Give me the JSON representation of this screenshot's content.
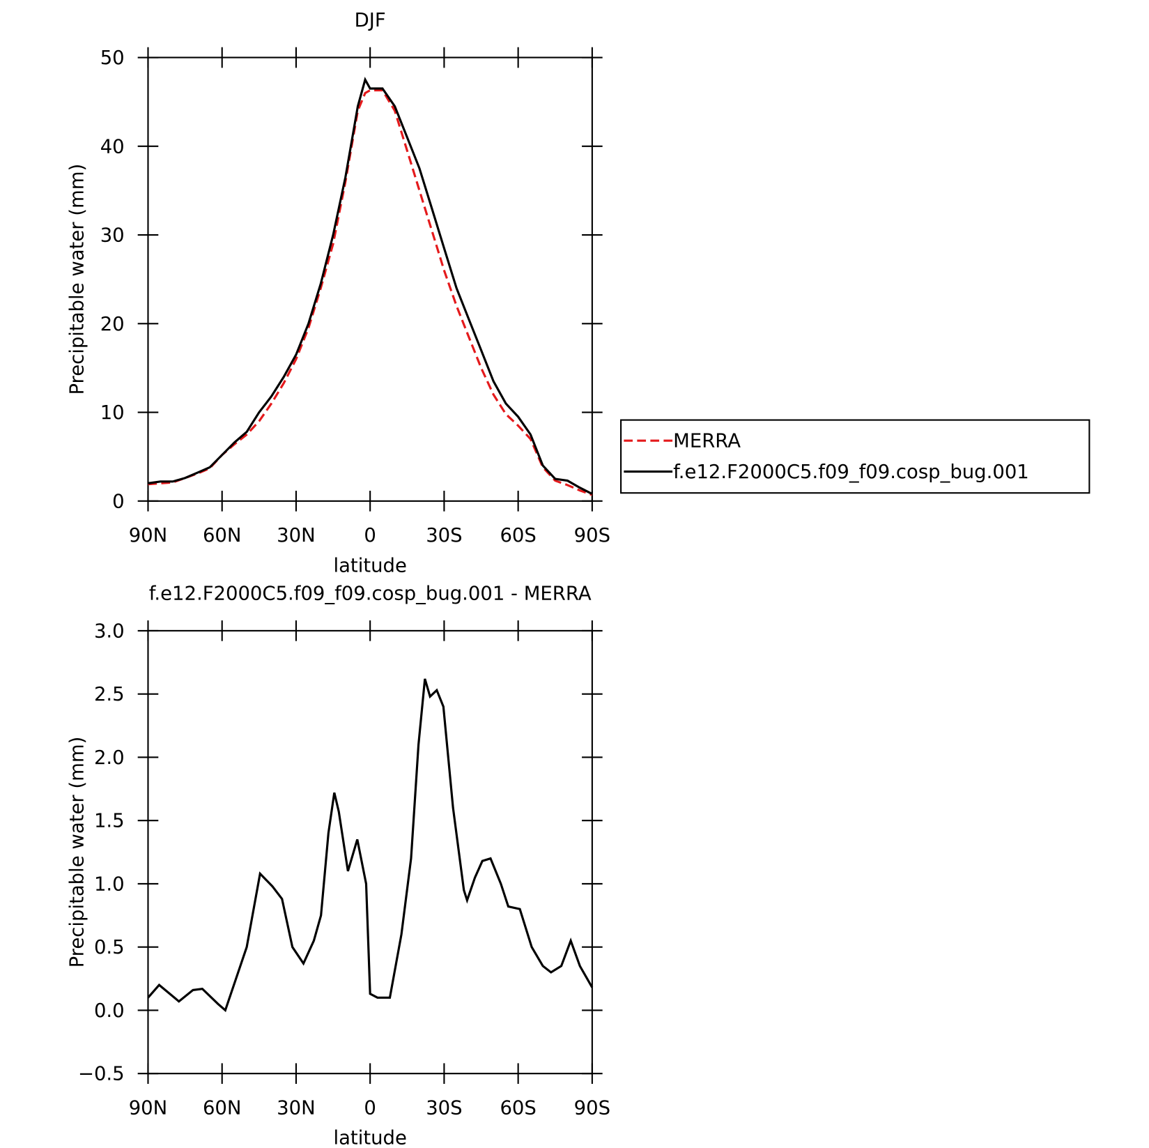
{
  "chart_data": [
    {
      "type": "line",
      "title": "DJF",
      "xlabel": "latitude",
      "ylabel": "Precipitable water (mm)",
      "x": [
        90,
        85,
        80,
        75,
        70,
        65,
        60,
        55,
        50,
        45,
        40,
        35,
        30,
        25,
        20,
        15,
        10,
        5,
        2,
        0,
        -5,
        -10,
        -15,
        -20,
        -25,
        -30,
        -35,
        -40,
        -45,
        -50,
        -55,
        -60,
        -65,
        -70,
        -75,
        -80,
        -85,
        -90
      ],
      "xlim": [
        90,
        -90
      ],
      "xticks": [
        {
          "value": 90,
          "label": "90N"
        },
        {
          "value": 60,
          "label": "60N"
        },
        {
          "value": 30,
          "label": "30N"
        },
        0,
        {
          "value": -30,
          "label": "30S"
        },
        {
          "value": -60,
          "label": "60S"
        },
        {
          "value": -90,
          "label": "90S"
        }
      ],
      "ylim": [
        0,
        50
      ],
      "yticks": [
        0,
        10,
        20,
        30,
        40,
        50
      ],
      "legend": "outside-right",
      "series": [
        {
          "name": "MERRA",
          "color": "#e41a1c",
          "dash": true,
          "values": [
            1.9,
            2.0,
            2.1,
            2.6,
            3.1,
            3.7,
            5.2,
            6.4,
            7.5,
            9.0,
            11.0,
            13.3,
            16.0,
            19.5,
            24.0,
            29.0,
            36.0,
            44.0,
            46.0,
            46.3,
            46.3,
            44.0,
            39.5,
            35.0,
            30.5,
            26.0,
            22.0,
            18.5,
            15.0,
            12.0,
            9.8,
            8.5,
            7.0,
            3.8,
            2.3,
            1.8,
            1.2,
            0.7
          ]
        },
        {
          "name": "f.e12.F2000C5.f09_f09.cosp_bug.001",
          "color": "#000000",
          "dash": false,
          "values": [
            2.0,
            2.2,
            2.2,
            2.6,
            3.2,
            3.8,
            5.2,
            6.6,
            7.8,
            10.0,
            11.8,
            14.0,
            16.5,
            20.0,
            24.5,
            30.0,
            36.5,
            44.5,
            47.5,
            46.5,
            46.5,
            44.5,
            41.0,
            37.5,
            33.0,
            28.5,
            24.0,
            20.5,
            17.0,
            13.5,
            11.0,
            9.5,
            7.5,
            4.0,
            2.5,
            2.3,
            1.5,
            0.8
          ]
        }
      ]
    },
    {
      "type": "line",
      "title": "f.e12.F2000C5.f09_f09.cosp_bug.001 - MERRA",
      "xlabel": "latitude",
      "ylabel": "Precipitable water (mm)",
      "x": [
        90,
        85.5,
        77.5,
        71.8,
        68,
        61.6,
        58.7,
        50,
        44.6,
        39.6,
        35.7,
        31.5,
        27,
        22.8,
        19.9,
        16.9,
        14.5,
        12.7,
        9,
        5.2,
        1.6,
        0,
        -3,
        -8,
        -12.7,
        -16.6,
        -19.6,
        -22.2,
        -24.3,
        -27,
        -29.7,
        -33.6,
        -38,
        -39.3,
        -42.5,
        -45.5,
        -48.8,
        -53,
        -56,
        -60.7,
        -65.5,
        -70,
        -73.3,
        -77.5,
        -81.3,
        -85,
        -90
      ],
      "xlim": [
        90,
        -90
      ],
      "xticks": [
        {
          "value": 90,
          "label": "90N"
        },
        {
          "value": 60,
          "label": "60N"
        },
        {
          "value": 30,
          "label": "30N"
        },
        0,
        {
          "value": -30,
          "label": "30S"
        },
        {
          "value": -60,
          "label": "60S"
        },
        {
          "value": -90,
          "label": "90S"
        }
      ],
      "ylim": [
        -0.5,
        3.0
      ],
      "yticks": [
        {
          "value": -0.5,
          "label": "−0.5"
        },
        {
          "value": 0,
          "label": "0.0"
        },
        0.5,
        {
          "value": 1,
          "label": "1.0"
        },
        1.5,
        {
          "value": 2,
          "label": "2.0"
        },
        2.5,
        {
          "value": 3,
          "label": "3.0"
        }
      ],
      "series": [
        {
          "name": null,
          "color": "#000000",
          "dash": false,
          "values": [
            0.1,
            0.2,
            0.07,
            0.16,
            0.17,
            0.05,
            0.0,
            0.5,
            1.08,
            0.98,
            0.88,
            0.5,
            0.37,
            0.55,
            0.75,
            1.4,
            1.72,
            1.57,
            1.1,
            1.35,
            1.0,
            0.13,
            0.1,
            0.1,
            0.6,
            1.2,
            2.1,
            2.62,
            2.48,
            2.53,
            2.4,
            1.6,
            0.95,
            0.87,
            1.05,
            1.18,
            1.2,
            1.0,
            0.82,
            0.8,
            0.5,
            0.35,
            0.3,
            0.35,
            0.55,
            0.35,
            0.18
          ]
        }
      ]
    }
  ]
}
